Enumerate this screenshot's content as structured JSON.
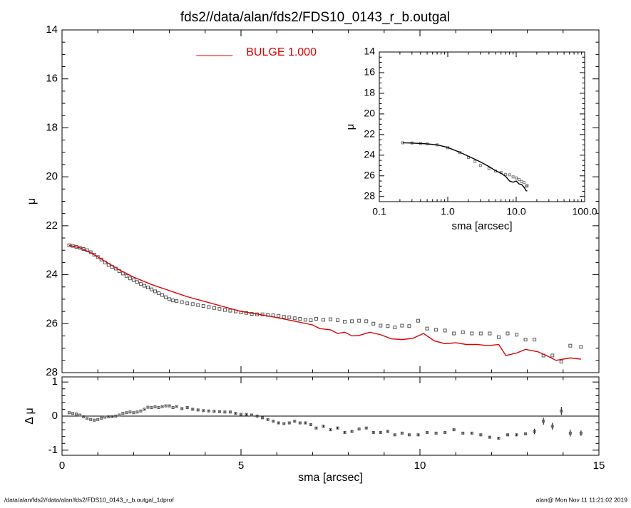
{
  "title": "fds2//data/alan/fds2/FDS10_0143_r_b.outgal",
  "footer_left": "/data/alan/fds2//data/alan/fds2/FDS10_0143_r_b.outgal_1dprof",
  "footer_right": "alan@  Mon Nov 11 11:21:02 2019",
  "chart_data": [
    {
      "type": "scatter",
      "ylabel": "μ",
      "xlim": [
        0,
        15
      ],
      "xticks": [
        0,
        5,
        10,
        15
      ],
      "show_xtick_labels": false,
      "ylim": [
        28,
        14
      ],
      "yticks": [
        14,
        16,
        18,
        20,
        22,
        24,
        26,
        28
      ],
      "xminor": 5,
      "yminor": 4,
      "legend": "upper center",
      "series": [
        {
          "kind": "points",
          "color": "#555555",
          "x": [
            0.2,
            0.3,
            0.4,
            0.5,
            0.6,
            0.7,
            0.8,
            0.9,
            1.0,
            1.1,
            1.2,
            1.3,
            1.4,
            1.5,
            1.6,
            1.7,
            1.8,
            1.9,
            2.0,
            2.1,
            2.2,
            2.3,
            2.4,
            2.5,
            2.6,
            2.7,
            2.8,
            2.9,
            3.0,
            3.1,
            3.2,
            3.35,
            3.5,
            3.65,
            3.8,
            3.95,
            4.1,
            4.25,
            4.4,
            4.55,
            4.7,
            4.85,
            5.0,
            5.15,
            5.3,
            5.45,
            5.6,
            5.75,
            5.9,
            6.05,
            6.2,
            6.35,
            6.5,
            6.65,
            6.8,
            6.95,
            7.1,
            7.3,
            7.5,
            7.7,
            7.9,
            8.1,
            8.3,
            8.5,
            8.7,
            8.9,
            9.1,
            9.3,
            9.5,
            9.7,
            9.95,
            10.2,
            10.45,
            10.7,
            10.95,
            11.2,
            11.45,
            11.7,
            11.95,
            12.2,
            12.45,
            12.7,
            12.95,
            13.2,
            13.45,
            13.7,
            13.95,
            14.2,
            14.5
          ],
          "values": [
            22.8,
            22.82,
            22.86,
            22.9,
            22.95,
            23.0,
            23.08,
            23.18,
            23.28,
            23.38,
            23.5,
            23.6,
            23.68,
            23.75,
            23.85,
            23.95,
            24.05,
            24.15,
            24.22,
            24.3,
            24.38,
            24.45,
            24.52,
            24.6,
            24.68,
            24.75,
            24.83,
            24.92,
            25.0,
            25.05,
            25.08,
            25.12,
            25.17,
            25.2,
            25.24,
            25.28,
            25.32,
            25.36,
            25.4,
            25.44,
            25.47,
            25.5,
            25.54,
            25.56,
            25.6,
            25.62,
            25.62,
            25.64,
            25.66,
            25.68,
            25.72,
            25.74,
            25.78,
            25.8,
            25.84,
            25.86,
            25.8,
            25.84,
            25.82,
            25.86,
            25.92,
            25.9,
            25.88,
            25.9,
            26.0,
            26.08,
            26.1,
            26.15,
            26.08,
            26.1,
            25.88,
            26.2,
            26.25,
            26.28,
            26.4,
            26.35,
            26.4,
            26.4,
            26.4,
            26.55,
            26.4,
            26.45,
            26.65,
            26.65,
            27.3,
            27.3,
            27.55,
            26.9,
            26.95
          ]
        },
        {
          "name": "BULGE  1.000",
          "kind": "line",
          "color": "#e00000",
          "x": [
            0.2,
            0.5,
            0.8,
            1.2,
            1.6,
            2.0,
            2.5,
            3.0,
            3.5,
            4.0,
            4.5,
            5.0,
            5.5,
            6.0,
            6.5,
            7.0,
            7.2,
            7.5,
            7.7,
            7.9,
            8.1,
            8.3,
            8.6,
            8.9,
            9.2,
            9.5,
            9.8,
            10.1,
            10.4,
            10.7,
            11.0,
            11.3,
            11.6,
            11.9,
            12.2,
            12.4,
            12.7,
            12.95,
            13.3,
            13.6,
            13.8,
            14.0,
            14.2,
            14.5
          ],
          "values": [
            22.8,
            22.9,
            23.1,
            23.45,
            23.8,
            24.1,
            24.4,
            24.65,
            24.9,
            25.1,
            25.3,
            25.5,
            25.62,
            25.75,
            25.9,
            26.05,
            26.2,
            26.25,
            26.4,
            26.35,
            26.5,
            26.48,
            26.35,
            26.45,
            26.62,
            26.65,
            26.6,
            26.4,
            26.7,
            26.82,
            26.78,
            26.85,
            26.85,
            26.9,
            26.85,
            27.3,
            27.2,
            27.05,
            27.15,
            27.35,
            27.5,
            27.45,
            27.4,
            27.45
          ]
        }
      ]
    },
    {
      "type": "scatter",
      "ylabel": "Δ μ",
      "xlabel": "sma [arcsec]",
      "xlim": [
        0,
        15
      ],
      "xticks": [
        0,
        5,
        10,
        15
      ],
      "show_xtick_labels": true,
      "ylim": [
        -1.15,
        1.15
      ],
      "yticks": [
        -1,
        0,
        1
      ],
      "xminor": 5,
      "yminor": 5,
      "hline": 0,
      "series": [
        {
          "kind": "errorpoints",
          "color": "#555555",
          "x": [
            0.2,
            0.3,
            0.4,
            0.5,
            0.6,
            0.7,
            0.8,
            0.9,
            1.0,
            1.1,
            1.2,
            1.3,
            1.4,
            1.5,
            1.6,
            1.7,
            1.8,
            1.9,
            2.0,
            2.1,
            2.2,
            2.3,
            2.4,
            2.5,
            2.6,
            2.7,
            2.8,
            2.9,
            3.0,
            3.1,
            3.2,
            3.35,
            3.5,
            3.65,
            3.8,
            3.95,
            4.1,
            4.25,
            4.4,
            4.55,
            4.7,
            4.85,
            5.0,
            5.15,
            5.3,
            5.45,
            5.6,
            5.75,
            5.9,
            6.05,
            6.2,
            6.35,
            6.5,
            6.65,
            6.8,
            6.95,
            7.1,
            7.3,
            7.5,
            7.7,
            7.9,
            8.1,
            8.3,
            8.5,
            8.7,
            8.9,
            9.1,
            9.3,
            9.5,
            9.7,
            9.95,
            10.2,
            10.45,
            10.7,
            10.95,
            11.2,
            11.45,
            11.7,
            11.95,
            12.2,
            12.45,
            12.7,
            12.95,
            13.2,
            13.45,
            13.7,
            13.95,
            14.2,
            14.5
          ],
          "values": [
            0.1,
            0.08,
            0.06,
            0.03,
            -0.02,
            -0.07,
            -0.1,
            -0.12,
            -0.1,
            -0.06,
            -0.03,
            -0.02,
            -0.02,
            0.0,
            0.03,
            0.08,
            0.1,
            0.12,
            0.1,
            0.12,
            0.15,
            0.2,
            0.26,
            0.25,
            0.27,
            0.25,
            0.28,
            0.3,
            0.3,
            0.25,
            0.28,
            0.22,
            0.25,
            0.2,
            0.18,
            0.16,
            0.15,
            0.14,
            0.13,
            0.12,
            0.12,
            0.08,
            0.05,
            0.05,
            0.03,
            0.0,
            -0.05,
            -0.1,
            -0.15,
            -0.2,
            -0.22,
            -0.2,
            -0.15,
            -0.2,
            -0.2,
            -0.25,
            -0.35,
            -0.3,
            -0.4,
            -0.35,
            -0.48,
            -0.45,
            -0.38,
            -0.35,
            -0.48,
            -0.48,
            -0.45,
            -0.55,
            -0.5,
            -0.55,
            -0.55,
            -0.48,
            -0.5,
            -0.48,
            -0.4,
            -0.5,
            -0.5,
            -0.55,
            -0.62,
            -0.65,
            -0.55,
            -0.55,
            -0.52,
            -0.45,
            -0.15,
            -0.3,
            0.15,
            -0.5,
            -0.5
          ],
          "errors": [
            0.01,
            0.01,
            0.01,
            0.01,
            0.01,
            0.01,
            0.01,
            0.01,
            0.01,
            0.01,
            0.01,
            0.01,
            0.01,
            0.01,
            0.01,
            0.01,
            0.01,
            0.01,
            0.01,
            0.01,
            0.01,
            0.01,
            0.01,
            0.01,
            0.01,
            0.01,
            0.01,
            0.01,
            0.01,
            0.01,
            0.01,
            0.02,
            0.02,
            0.02,
            0.02,
            0.02,
            0.02,
            0.02,
            0.02,
            0.02,
            0.02,
            0.02,
            0.02,
            0.02,
            0.02,
            0.02,
            0.02,
            0.02,
            0.02,
            0.02,
            0.02,
            0.02,
            0.02,
            0.02,
            0.02,
            0.02,
            0.02,
            0.03,
            0.03,
            0.03,
            0.03,
            0.03,
            0.03,
            0.03,
            0.03,
            0.03,
            0.03,
            0.03,
            0.03,
            0.03,
            0.04,
            0.04,
            0.04,
            0.04,
            0.04,
            0.04,
            0.04,
            0.04,
            0.04,
            0.04,
            0.04,
            0.04,
            0.04,
            0.08,
            0.1,
            0.1,
            0.12,
            0.1,
            0.08
          ]
        }
      ]
    },
    {
      "type": "scatter",
      "ylabel": "μ",
      "xlabel": "sma [arcsec]",
      "xlog": true,
      "xlim": [
        0.1,
        100
      ],
      "xticks": [
        {
          "value": 0.1,
          "label": "0.1"
        },
        {
          "value": 1,
          "label": "1.0"
        },
        {
          "value": 10,
          "label": "10.0"
        },
        {
          "value": 100,
          "label": "100.0"
        }
      ],
      "show_xtick_labels": true,
      "ylim": [
        28.5,
        14
      ],
      "yticks": [
        14,
        16,
        18,
        20,
        22,
        24,
        26,
        28
      ],
      "yminor": 4,
      "series": [
        {
          "kind": "points",
          "color": "#777777",
          "x": [
            0.22,
            0.3,
            0.4,
            0.5,
            0.7,
            1.0,
            1.5,
            2.0,
            2.5,
            3.0,
            4.0,
            5.0,
            6.0,
            7.0,
            8.0,
            9.0,
            10.0,
            11.0,
            12.0,
            13.0,
            14.0,
            14.5
          ],
          "values": [
            22.8,
            22.82,
            22.86,
            22.9,
            23.0,
            23.28,
            23.75,
            24.22,
            24.6,
            25.0,
            25.3,
            25.54,
            25.68,
            25.86,
            25.9,
            26.1,
            26.2,
            26.35,
            26.55,
            26.65,
            27.0,
            26.95
          ]
        },
        {
          "kind": "line",
          "color": "#000000",
          "x": [
            0.22,
            0.3,
            0.4,
            0.5,
            0.7,
            1.0,
            1.5,
            2.0,
            2.5,
            3.0,
            4.0,
            5.0,
            6.0,
            7.0,
            8.0,
            9.0,
            10.0,
            11.0,
            12.0,
            13.0,
            14.0,
            14.5
          ],
          "values": [
            22.8,
            22.82,
            22.87,
            22.9,
            23.0,
            23.25,
            23.72,
            24.1,
            24.4,
            24.65,
            25.1,
            25.5,
            25.75,
            26.05,
            26.5,
            26.62,
            26.5,
            26.78,
            26.85,
            27.1,
            27.45,
            27.45
          ]
        }
      ]
    }
  ]
}
